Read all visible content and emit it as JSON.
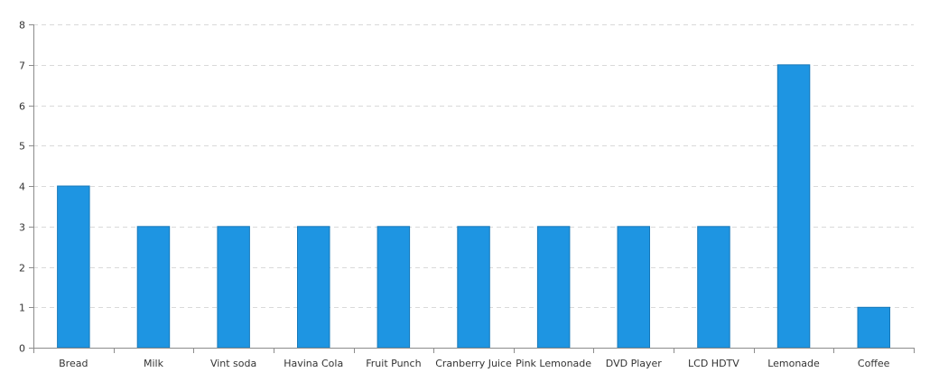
{
  "chart_data": {
    "type": "bar",
    "title": "",
    "xlabel": "",
    "ylabel": "",
    "categories": [
      "Bread",
      "Milk",
      "Vint soda",
      "Havina Cola",
      "Fruit Punch",
      "Cranberry Juice",
      "Pink Lemonade",
      "DVD Player",
      "LCD HDTV",
      "Lemonade",
      "Coffee"
    ],
    "values": [
      4,
      3,
      3,
      3,
      3,
      3,
      3,
      3,
      3,
      7,
      1
    ],
    "ylim": [
      0,
      8
    ],
    "yticks": [
      "0",
      "1",
      "2",
      "3",
      "4",
      "5",
      "6",
      "7",
      "8"
    ],
    "grid": true,
    "bar_color": "#1e95e2",
    "bar_border_color": "#1778b8",
    "grid_color": "#d9d9d9",
    "axis_color": "#8c8c8c"
  }
}
